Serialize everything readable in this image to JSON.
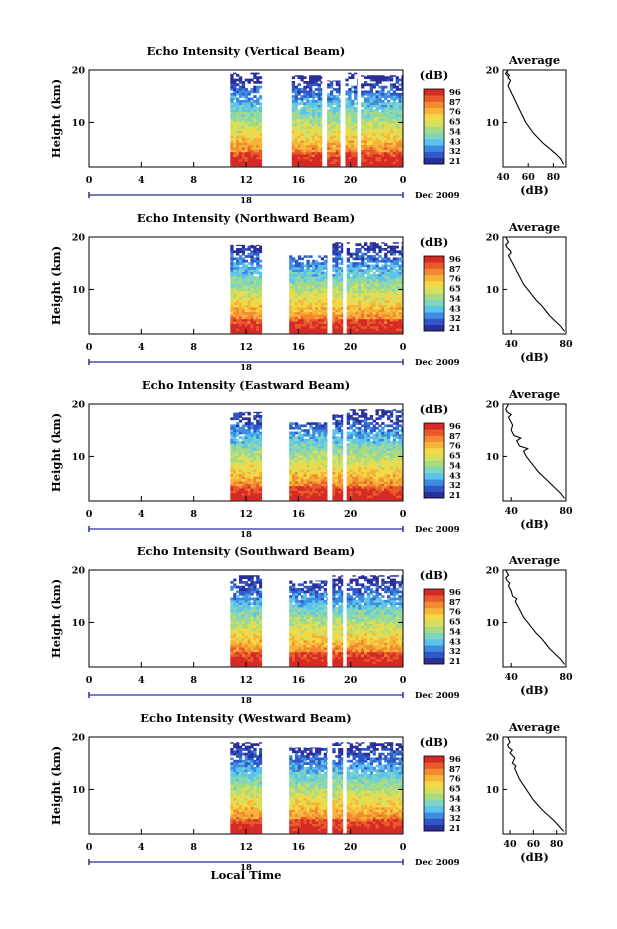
{
  "figure": {
    "xlabel": "Local Time",
    "date_label": "Dec 2009",
    "day_label": "18"
  },
  "colorbar": {
    "unit": "(dB)",
    "ticks": [
      "96",
      "87",
      "76",
      "65",
      "54",
      "43",
      "32",
      "21"
    ],
    "colors": [
      "#2b2f9a",
      "#2f57c8",
      "#3f8be0",
      "#5cc2ee",
      "#7fd6c0",
      "#a6db84",
      "#d6e05f",
      "#f4d845",
      "#f6b43a",
      "#f38a31",
      "#e85a2b",
      "#d62a26"
    ]
  },
  "chart_data": [
    {
      "type": "heatmap",
      "title": "Echo Intensity (Vertical Beam)",
      "ylabel": "Height (km)",
      "x_ticks": [
        "0",
        "4",
        "8",
        "12",
        "16",
        "20",
        "0"
      ],
      "y_ticks": [
        "20",
        "10"
      ],
      "xlim": [
        0,
        24
      ],
      "ylim": [
        1.5,
        20
      ],
      "clim": [
        21,
        96
      ],
      "data_segments_hours": [
        [
          10.8,
          13.2
        ],
        [
          15.5,
          17.8
        ],
        [
          18.2,
          19.2
        ],
        [
          19.6,
          20.5
        ],
        [
          20.8,
          24
        ]
      ],
      "top_height_km": [
        19.5,
        19.0,
        18.0,
        19.5,
        19.0
      ],
      "average_profile": {
        "title": "Average",
        "xlabel": "(dB)",
        "x_ticks": [
          "40",
          "60",
          "80"
        ],
        "y_ticks": [
          "20",
          "10"
        ],
        "xlim": [
          40,
          90
        ],
        "ylim": [
          1.5,
          20
        ],
        "x": [
          88,
          86,
          82,
          77,
          72,
          68,
          64,
          61,
          58,
          56,
          54,
          52,
          50,
          49,
          48,
          47,
          46,
          45,
          44,
          45,
          46,
          44,
          45,
          43,
          44,
          42,
          44
        ],
        "y": [
          2,
          3,
          4,
          5,
          6,
          7,
          8,
          9,
          10,
          11,
          12,
          13,
          14,
          14.5,
          15,
          15.5,
          16,
          16.5,
          17,
          17.5,
          18,
          18.5,
          19,
          19.5,
          20,
          19.3,
          18.8
        ]
      }
    },
    {
      "type": "heatmap",
      "title": "Echo Intensity (Northward Beam)",
      "ylabel": "Height (km)",
      "x_ticks": [
        "0",
        "4",
        "8",
        "12",
        "16",
        "20",
        "0"
      ],
      "y_ticks": [
        "20",
        "10"
      ],
      "xlim": [
        0,
        24
      ],
      "ylim": [
        1.5,
        20
      ],
      "clim": [
        21,
        96
      ],
      "data_segments_hours": [
        [
          10.8,
          13.2
        ],
        [
          15.3,
          18.2
        ],
        [
          18.6,
          19.4
        ],
        [
          19.7,
          24
        ]
      ],
      "top_height_km": [
        18.5,
        16.5,
        19.0,
        19.0
      ],
      "average_profile": {
        "title": "Average",
        "xlabel": "(dB)",
        "x_ticks": [
          "40",
          "80"
        ],
        "y_ticks": [
          "20",
          "10"
        ],
        "xlim": [
          34,
          80
        ],
        "ylim": [
          1.5,
          20
        ],
        "x": [
          79,
          76,
          72,
          68,
          65,
          62,
          58,
          55,
          52,
          49,
          47,
          45,
          43,
          41,
          40,
          39,
          38,
          40,
          39,
          37,
          36,
          38,
          36
        ],
        "y": [
          2,
          3,
          4,
          5,
          6,
          7,
          8,
          9,
          10,
          11,
          12,
          13,
          14,
          15,
          15.5,
          16,
          16.5,
          17,
          17.5,
          18,
          18.5,
          19,
          20
        ]
      }
    },
    {
      "type": "heatmap",
      "title": "Echo Intensity (Eastward Beam)",
      "ylabel": "Height (km)",
      "x_ticks": [
        "0",
        "4",
        "8",
        "12",
        "16",
        "20",
        "0"
      ],
      "y_ticks": [
        "20",
        "10"
      ],
      "xlim": [
        0,
        24
      ],
      "ylim": [
        1.5,
        20
      ],
      "clim": [
        21,
        96
      ],
      "data_segments_hours": [
        [
          10.8,
          13.2
        ],
        [
          15.3,
          18.2
        ],
        [
          18.6,
          19.4
        ],
        [
          19.7,
          24
        ]
      ],
      "top_height_km": [
        18.5,
        16.5,
        18.0,
        19.0
      ],
      "average_profile": {
        "title": "Average",
        "xlabel": "(dB)",
        "x_ticks": [
          "40",
          "80"
        ],
        "y_ticks": [
          "20",
          "10"
        ],
        "xlim": [
          34,
          80
        ],
        "ylim": [
          1.5,
          20
        ],
        "x": [
          79,
          76,
          72,
          68,
          64,
          60,
          57,
          54,
          51,
          49,
          52,
          46,
          44,
          47,
          42,
          40,
          41,
          39,
          38,
          40,
          37,
          36,
          38
        ],
        "y": [
          2,
          3,
          4,
          5,
          6,
          7,
          8,
          9,
          10,
          11,
          11.5,
          12,
          13,
          13.5,
          14,
          15,
          16,
          17,
          17.5,
          18,
          18.5,
          19,
          20
        ]
      }
    },
    {
      "type": "heatmap",
      "title": "Echo Intensity (Southward Beam)",
      "ylabel": "Height (km)",
      "x_ticks": [
        "0",
        "4",
        "8",
        "12",
        "16",
        "20",
        "0"
      ],
      "y_ticks": [
        "20",
        "10"
      ],
      "xlim": [
        0,
        24
      ],
      "ylim": [
        1.5,
        20
      ],
      "clim": [
        21,
        96
      ],
      "data_segments_hours": [
        [
          10.8,
          13.2
        ],
        [
          15.3,
          18.2
        ],
        [
          18.6,
          19.4
        ],
        [
          19.7,
          24
        ]
      ],
      "top_height_km": [
        19.0,
        18.0,
        19.0,
        19.0
      ],
      "average_profile": {
        "title": "Average",
        "xlabel": "(dB)",
        "x_ticks": [
          "40",
          "80"
        ],
        "y_ticks": [
          "20",
          "10"
        ],
        "xlim": [
          34,
          80
        ],
        "ylim": [
          1.5,
          20
        ],
        "x": [
          79,
          76,
          72,
          68,
          65,
          62,
          58,
          55,
          52,
          49,
          47,
          45,
          43,
          44,
          41,
          40,
          38,
          39,
          37,
          36,
          38,
          36
        ],
        "y": [
          2,
          3,
          4,
          5,
          6,
          7,
          8,
          9,
          10,
          11,
          12,
          13,
          14,
          14.5,
          15,
          16,
          17,
          17.5,
          18,
          18.5,
          19,
          20
        ]
      }
    },
    {
      "type": "heatmap",
      "title": "Echo Intensity (Westward Beam)",
      "ylabel": "Height (km)",
      "x_ticks": [
        "0",
        "4",
        "8",
        "12",
        "16",
        "20",
        "0"
      ],
      "y_ticks": [
        "20",
        "10"
      ],
      "xlim": [
        0,
        24
      ],
      "ylim": [
        1.5,
        20
      ],
      "clim": [
        21,
        96
      ],
      "data_segments_hours": [
        [
          10.8,
          13.2
        ],
        [
          15.3,
          18.2
        ],
        [
          18.6,
          19.4
        ],
        [
          19.7,
          24
        ]
      ],
      "top_height_km": [
        19.0,
        18.0,
        19.0,
        19.0
      ],
      "average_profile": {
        "title": "Average",
        "xlabel": "(dB)",
        "x_ticks": [
          "40",
          "60",
          "80"
        ],
        "y_ticks": [
          "20",
          "10"
        ],
        "xlim": [
          34,
          88
        ],
        "ylim": [
          1.5,
          20
        ],
        "x": [
          86,
          82,
          78,
          73,
          68,
          64,
          60,
          57,
          54,
          51,
          48,
          46,
          44,
          45,
          42,
          44,
          40,
          42,
          39,
          38,
          40,
          38
        ],
        "y": [
          2,
          3,
          4,
          5,
          6,
          7,
          8,
          9,
          10,
          11,
          12,
          13,
          14,
          14.5,
          15,
          16,
          17,
          17.5,
          18,
          18.5,
          19,
          20
        ]
      }
    }
  ]
}
